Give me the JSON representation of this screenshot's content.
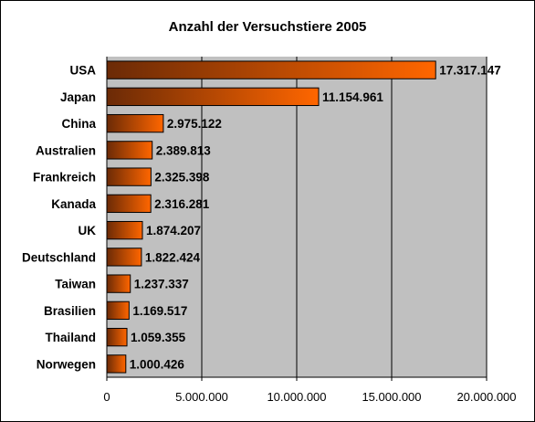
{
  "chart_data": {
    "type": "bar",
    "orientation": "horizontal",
    "title": "Anzahl der Versuchstiere 2005",
    "categories": [
      "USA",
      "Japan",
      "China",
      "Australien",
      "Frankreich",
      "Kanada",
      "UK",
      "Deutschland",
      "Taiwan",
      "Brasilien",
      "Thailand",
      "Norwegen"
    ],
    "values": [
      17317147,
      11154961,
      2975122,
      2389813,
      2325398,
      2316281,
      1874207,
      1822424,
      1237337,
      1169517,
      1059355,
      1000426
    ],
    "data_labels": [
      "17.317.147",
      "11.154.961",
      "2.975.122",
      "2.389.813",
      "2.325.398",
      "2.316.281",
      "1.874.207",
      "1.822.424",
      "1.237.337",
      "1.169.517",
      "1.059.355",
      "1.000.426"
    ],
    "xlim": [
      0,
      20000000
    ],
    "x_ticks": [
      0,
      5000000,
      10000000,
      15000000,
      20000000
    ],
    "x_tick_labels": [
      "0",
      "5.000.000",
      "10.000.000",
      "15.000.000",
      "20.000.000"
    ],
    "xlabel": "",
    "ylabel": "",
    "grid": "vertical",
    "legend": "none",
    "colors": {
      "plot_background": "#c0c0c0",
      "bar_gradient_start": "#6b2a06",
      "bar_gradient_end": "#ff6600",
      "bar_outline": "#000000",
      "gridline": "#000000"
    }
  }
}
